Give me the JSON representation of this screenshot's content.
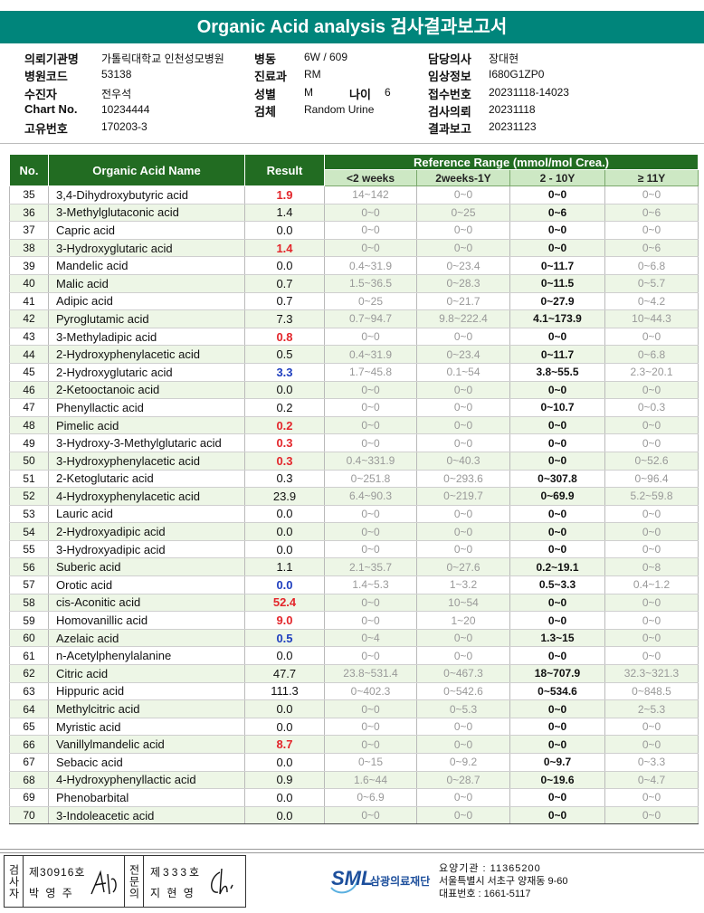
{
  "header": {
    "title": "Organic Acid analysis 검사결과보고서"
  },
  "info": {
    "columns": [
      [
        {
          "label": "의뢰기관명",
          "value": "가톨릭대학교 인천성모병원"
        },
        {
          "label": "병원코드",
          "value": "53138"
        },
        {
          "label": "수진자",
          "value": "전우석"
        },
        {
          "label": "Chart No.",
          "value": "10234444"
        },
        {
          "label": "고유번호",
          "value": "170203-3"
        }
      ],
      [
        {
          "label": "병동",
          "value": "6W / 609"
        },
        {
          "label": "진료과",
          "value": "RM"
        },
        {
          "label": "성별",
          "value": "M",
          "extra": {
            "label": "나이",
            "value": "6"
          }
        },
        {
          "label": "검체",
          "value": "Random Urine"
        }
      ],
      [
        {
          "label": "담당의사",
          "value": "장대현"
        },
        {
          "label": "임상정보",
          "value": "I680G1ZP0"
        },
        {
          "label": "접수번호",
          "value": "20231118-14023"
        },
        {
          "label": "검사의뢰",
          "value": "20231118"
        },
        {
          "label": "결과보고",
          "value": "20231123"
        }
      ]
    ]
  },
  "table": {
    "columns": {
      "no": "No.",
      "name": "Organic Acid Name",
      "result": "Result",
      "reference": "Reference Range (mmol/mol Crea.)",
      "ranges": [
        "<2 weeks",
        "2weeks-1Y",
        "2 - 10Y",
        "≥ 11Y"
      ]
    },
    "rows": [
      {
        "no": "35",
        "name": "3,4-Dihydroxybutyric acid",
        "result": "1.9",
        "color": "#e3262b",
        "ranges": [
          "14~142",
          "0~0",
          "0~0",
          "0~0"
        ]
      },
      {
        "no": "36",
        "name": "3-Methylglutaconic acid",
        "result": "1.4",
        "ranges": [
          "0~0",
          "0~25",
          "0~6",
          "0~6"
        ]
      },
      {
        "no": "37",
        "name": "Capric acid",
        "result": "0.0",
        "ranges": [
          "0~0",
          "0~0",
          "0~0",
          "0~0"
        ]
      },
      {
        "no": "38",
        "name": "3-Hydroxyglutaric acid",
        "result": "1.4",
        "color": "#e3262b",
        "ranges": [
          "0~0",
          "0~0",
          "0~0",
          "0~6"
        ]
      },
      {
        "no": "39",
        "name": "Mandelic acid",
        "result": "0.0",
        "ranges": [
          "0.4~31.9",
          "0~23.4",
          "0~11.7",
          "0~6.8"
        ]
      },
      {
        "no": "40",
        "name": "Malic acid",
        "result": "0.7",
        "ranges": [
          "1.5~36.5",
          "0~28.3",
          "0~11.5",
          "0~5.7"
        ]
      },
      {
        "no": "41",
        "name": "Adipic acid",
        "result": "0.7",
        "ranges": [
          "0~25",
          "0~21.7",
          "0~27.9",
          "0~4.2"
        ]
      },
      {
        "no": "42",
        "name": "Pyroglutamic acid",
        "result": "7.3",
        "ranges": [
          "0.7~94.7",
          "9.8~222.4",
          "4.1~173.9",
          "10~44.3"
        ]
      },
      {
        "no": "43",
        "name": "3-Methyladipic acid",
        "result": "0.8",
        "color": "#e3262b",
        "ranges": [
          "0~0",
          "0~0",
          "0~0",
          "0~0"
        ]
      },
      {
        "no": "44",
        "name": "2-Hydroxyphenylacetic acid",
        "result": "0.5",
        "ranges": [
          "0.4~31.9",
          "0~23.4",
          "0~11.7",
          "0~6.8"
        ]
      },
      {
        "no": "45",
        "name": "2-Hydroxyglutaric acid",
        "result": "3.3",
        "color": "#1f3fbf",
        "ranges": [
          "1.7~45.8",
          "0.1~54",
          "3.8~55.5",
          "2.3~20.1"
        ]
      },
      {
        "no": "46",
        "name": "2-Ketooctanoic acid",
        "result": "0.0",
        "ranges": [
          "0~0",
          "0~0",
          "0~0",
          "0~0"
        ]
      },
      {
        "no": "47",
        "name": "Phenyllactic acid",
        "result": "0.2",
        "ranges": [
          "0~0",
          "0~0",
          "0~10.7",
          "0~0.3"
        ]
      },
      {
        "no": "48",
        "name": "Pimelic acid",
        "result": "0.2",
        "color": "#e3262b",
        "ranges": [
          "0~0",
          "0~0",
          "0~0",
          "0~0"
        ]
      },
      {
        "no": "49",
        "name": "3-Hydroxy-3-Methylglutaric acid",
        "result": "0.3",
        "color": "#e3262b",
        "ranges": [
          "0~0",
          "0~0",
          "0~0",
          "0~0"
        ]
      },
      {
        "no": "50",
        "name": "3-Hydroxyphenylacetic acid",
        "result": "0.3",
        "color": "#e3262b",
        "ranges": [
          "0.4~331.9",
          "0~40.3",
          "0~0",
          "0~52.6"
        ]
      },
      {
        "no": "51",
        "name": "2-Ketoglutaric acid",
        "result": "0.3",
        "ranges": [
          "0~251.8",
          "0~293.6",
          "0~307.8",
          "0~96.4"
        ]
      },
      {
        "no": "52",
        "name": "4-Hydroxyphenylacetic acid",
        "result": "23.9",
        "ranges": [
          "6.4~90.3",
          "0~219.7",
          "0~69.9",
          "5.2~59.8"
        ]
      },
      {
        "no": "53",
        "name": "Lauric acid",
        "result": "0.0",
        "ranges": [
          "0~0",
          "0~0",
          "0~0",
          "0~0"
        ]
      },
      {
        "no": "54",
        "name": "2-Hydroxyadipic acid",
        "result": "0.0",
        "ranges": [
          "0~0",
          "0~0",
          "0~0",
          "0~0"
        ]
      },
      {
        "no": "55",
        "name": "3-Hydroxyadipic acid",
        "result": "0.0",
        "ranges": [
          "0~0",
          "0~0",
          "0~0",
          "0~0"
        ]
      },
      {
        "no": "56",
        "name": "Suberic acid",
        "result": "1.1",
        "ranges": [
          "2.1~35.7",
          "0~27.6",
          "0.2~19.1",
          "0~8"
        ]
      },
      {
        "no": "57",
        "name": "Orotic acid",
        "result": "0.0",
        "color": "#1f3fbf",
        "ranges": [
          "1.4~5.3",
          "1~3.2",
          "0.5~3.3",
          "0.4~1.2"
        ]
      },
      {
        "no": "58",
        "name": "cis-Aconitic acid",
        "result": "52.4",
        "color": "#e3262b",
        "ranges": [
          "0~0",
          "10~54",
          "0~0",
          "0~0"
        ]
      },
      {
        "no": "59",
        "name": "Homovanillic acid",
        "result": "9.0",
        "color": "#e3262b",
        "ranges": [
          "0~0",
          "1~20",
          "0~0",
          "0~0"
        ]
      },
      {
        "no": "60",
        "name": "Azelaic acid",
        "result": "0.5",
        "color": "#1f3fbf",
        "ranges": [
          "0~4",
          "0~0",
          "1.3~15",
          "0~0"
        ]
      },
      {
        "no": "61",
        "name": "n-Acetylphenylalanine",
        "result": "0.0",
        "ranges": [
          "0~0",
          "0~0",
          "0~0",
          "0~0"
        ]
      },
      {
        "no": "62",
        "name": "Citric acid",
        "result": "47.7",
        "ranges": [
          "23.8~531.4",
          "0~467.3",
          "18~707.9",
          "32.3~321.3"
        ]
      },
      {
        "no": "63",
        "name": "Hippuric acid",
        "result": "111.3",
        "ranges": [
          "0~402.3",
          "0~542.6",
          "0~534.6",
          "0~848.5"
        ]
      },
      {
        "no": "64",
        "name": "Methylcitric acid",
        "result": "0.0",
        "ranges": [
          "0~0",
          "0~5.3",
          "0~0",
          "2~5.3"
        ]
      },
      {
        "no": "65",
        "name": "Myristic acid",
        "result": "0.0",
        "ranges": [
          "0~0",
          "0~0",
          "0~0",
          "0~0"
        ]
      },
      {
        "no": "66",
        "name": "Vanillylmandelic acid",
        "result": "8.7",
        "color": "#e3262b",
        "ranges": [
          "0~0",
          "0~0",
          "0~0",
          "0~0"
        ]
      },
      {
        "no": "67",
        "name": "Sebacic acid",
        "result": "0.0",
        "ranges": [
          "0~15",
          "0~9.2",
          "0~9.7",
          "0~3.3"
        ]
      },
      {
        "no": "68",
        "name": "4-Hydroxyphenyllactic acid",
        "result": "0.9",
        "ranges": [
          "1.6~44",
          "0~28.7",
          "0~19.6",
          "0~4.7"
        ]
      },
      {
        "no": "69",
        "name": "Phenobarbital",
        "result": "0.0",
        "ranges": [
          "0~6.9",
          "0~0",
          "0~0",
          "0~0"
        ]
      },
      {
        "no": "70",
        "name": "3-Indoleacetic acid",
        "result": "0.0",
        "ranges": [
          "0~0",
          "0~0",
          "0~0",
          "0~0"
        ]
      }
    ]
  },
  "footer": {
    "inspector": {
      "role": "검사자",
      "license": "제30916호",
      "name": "박 영 주"
    },
    "specialist": {
      "role": "전문의",
      "license": "제333호",
      "name": "지 현 영"
    },
    "logo": {
      "mark": "SML",
      "org": "삼광의료재단"
    },
    "contact": [
      "요양기관 : 11365200",
      "서울특별시 서초구 양재동 9-60",
      "대표번호 : 1661-5117"
    ]
  }
}
